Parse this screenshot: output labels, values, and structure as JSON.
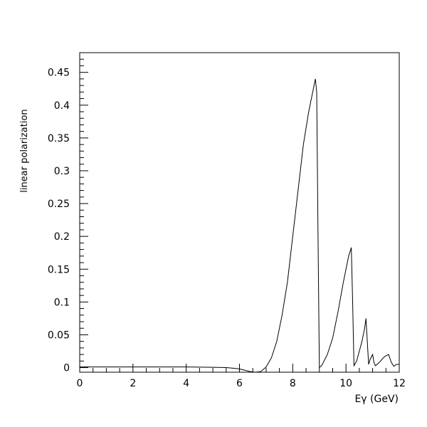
{
  "chart_data": {
    "type": "line",
    "title": "",
    "xlabel": "Eγ (GeV)",
    "ylabel": "linear polarization",
    "xlim": [
      0,
      12
    ],
    "ylim": [
      -0.007,
      0.48
    ],
    "grid": false,
    "x_ticks": [
      0,
      2,
      4,
      6,
      8,
      10,
      12
    ],
    "x_tick_labels": [
      "0",
      "2",
      "4",
      "6",
      "8",
      "10",
      "12"
    ],
    "y_ticks": [
      0,
      0.05,
      0.1,
      0.15,
      0.2,
      0.25,
      0.3,
      0.35,
      0.4,
      0.45
    ],
    "y_tick_labels": [
      "0",
      "0.05",
      "0.1",
      "0.15",
      "0.2",
      "0.25",
      "0.3",
      "0.35",
      "0.4",
      "0.45"
    ],
    "series": [
      {
        "x": [
          0,
          1,
          2,
          3,
          4,
          5,
          5.5,
          5.8,
          6.0,
          6.2,
          6.4,
          6.6,
          6.8,
          7.0,
          7.2,
          7.4,
          7.6,
          7.8,
          8.0,
          8.2,
          8.4,
          8.6,
          8.8,
          8.85,
          8.9,
          8.95,
          9.0,
          9.1,
          9.3,
          9.5,
          9.7,
          9.9,
          10.1,
          10.2,
          10.25,
          10.3,
          10.4,
          10.5,
          10.6,
          10.7,
          10.75,
          10.8,
          10.85,
          10.9,
          11.0,
          11.05,
          11.1,
          11.2,
          11.3,
          11.4,
          11.5,
          11.6,
          11.7,
          11.8,
          11.9,
          12.0
        ],
        "y": [
          0.001,
          0.001,
          0.001,
          0.001,
          0.001,
          0.0005,
          0,
          -0.001,
          -0.002,
          -0.004,
          -0.006,
          -0.007,
          -0.006,
          0.001,
          0.015,
          0.04,
          0.08,
          0.13,
          0.2,
          0.27,
          0.34,
          0.39,
          0.43,
          0.44,
          0.42,
          0.2,
          0.0,
          0.004,
          0.02,
          0.045,
          0.085,
          0.13,
          0.17,
          0.183,
          0.1,
          0.003,
          0.01,
          0.025,
          0.04,
          0.06,
          0.075,
          0.04,
          0.005,
          0.012,
          0.02,
          0.008,
          0.003,
          0.006,
          0.01,
          0.015,
          0.018,
          0.02,
          0.008,
          0.002,
          0.005,
          0.005
        ]
      }
    ]
  }
}
